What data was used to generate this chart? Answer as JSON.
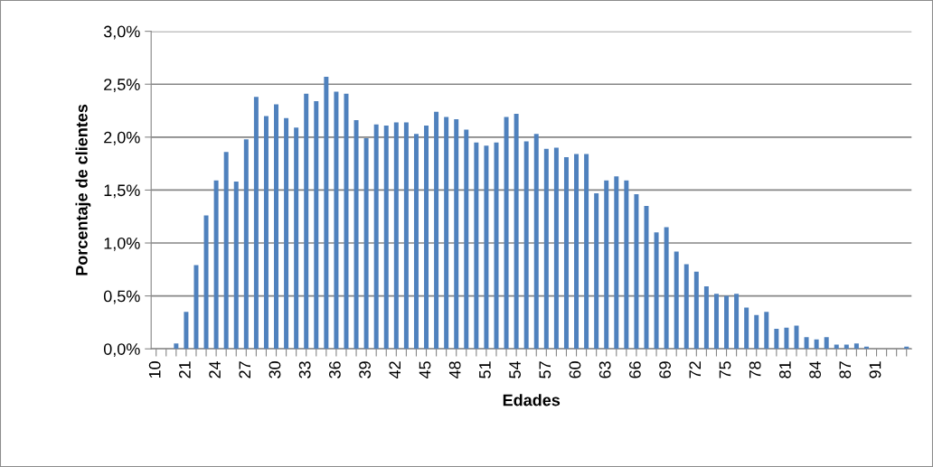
{
  "chart_data": {
    "type": "bar",
    "xlabel": "Edades",
    "ylabel": "Porcentaje de clientes",
    "categories": [
      "10",
      null,
      null,
      "21",
      null,
      null,
      "24",
      null,
      null,
      "27",
      null,
      null,
      "30",
      null,
      null,
      "33",
      null,
      null,
      "36",
      null,
      null,
      "39",
      null,
      null,
      "42",
      null,
      null,
      "45",
      null,
      null,
      "48",
      null,
      null,
      "51",
      null,
      null,
      "54",
      null,
      null,
      "57",
      null,
      null,
      "60",
      null,
      null,
      "63",
      null,
      null,
      "66",
      null,
      null,
      "69",
      null,
      null,
      "72",
      null,
      null,
      "75",
      null,
      null,
      "78",
      null,
      null,
      "81",
      null,
      null,
      "84",
      null,
      null,
      "87",
      null,
      null,
      "91",
      null,
      null,
      null
    ],
    "values": [
      0,
      0,
      0.05,
      0.35,
      0.79,
      1.26,
      1.59,
      1.86,
      1.58,
      1.98,
      2.38,
      2.2,
      2.31,
      2.18,
      2.09,
      2.41,
      2.34,
      2.57,
      2.43,
      2.41,
      2.16,
      1.99,
      2.12,
      2.11,
      2.14,
      2.14,
      2.03,
      2.11,
      2.24,
      2.19,
      2.17,
      2.07,
      1.95,
      1.92,
      1.95,
      2.19,
      2.22,
      1.96,
      2.03,
      1.89,
      1.9,
      1.81,
      1.84,
      1.84,
      1.47,
      1.59,
      1.63,
      1.59,
      1.46,
      1.35,
      1.1,
      1.15,
      0.92,
      0.8,
      0.73,
      0.59,
      0.52,
      0.5,
      0.52,
      0.39,
      0.32,
      0.35,
      0.19,
      0.2,
      0.22,
      0.11,
      0.09,
      0.11,
      0.04,
      0.04,
      0.05,
      0.02,
      0,
      0,
      0,
      0.02
    ],
    "color": "#4f81bd",
    "ylim": [
      0,
      3
    ],
    "yticks": [
      {
        "value": 0,
        "label": "0,0%"
      },
      {
        "value": 0.5,
        "label": "0,5%"
      },
      {
        "value": 1,
        "label": "1,0%"
      },
      {
        "value": 1.5,
        "label": "1,5%"
      },
      {
        "value": 2,
        "label": "2,0%"
      },
      {
        "value": 2.5,
        "label": "2,5%"
      },
      {
        "value": 3,
        "label": "3,0%"
      }
    ],
    "grid": "y",
    "legend": false
  }
}
